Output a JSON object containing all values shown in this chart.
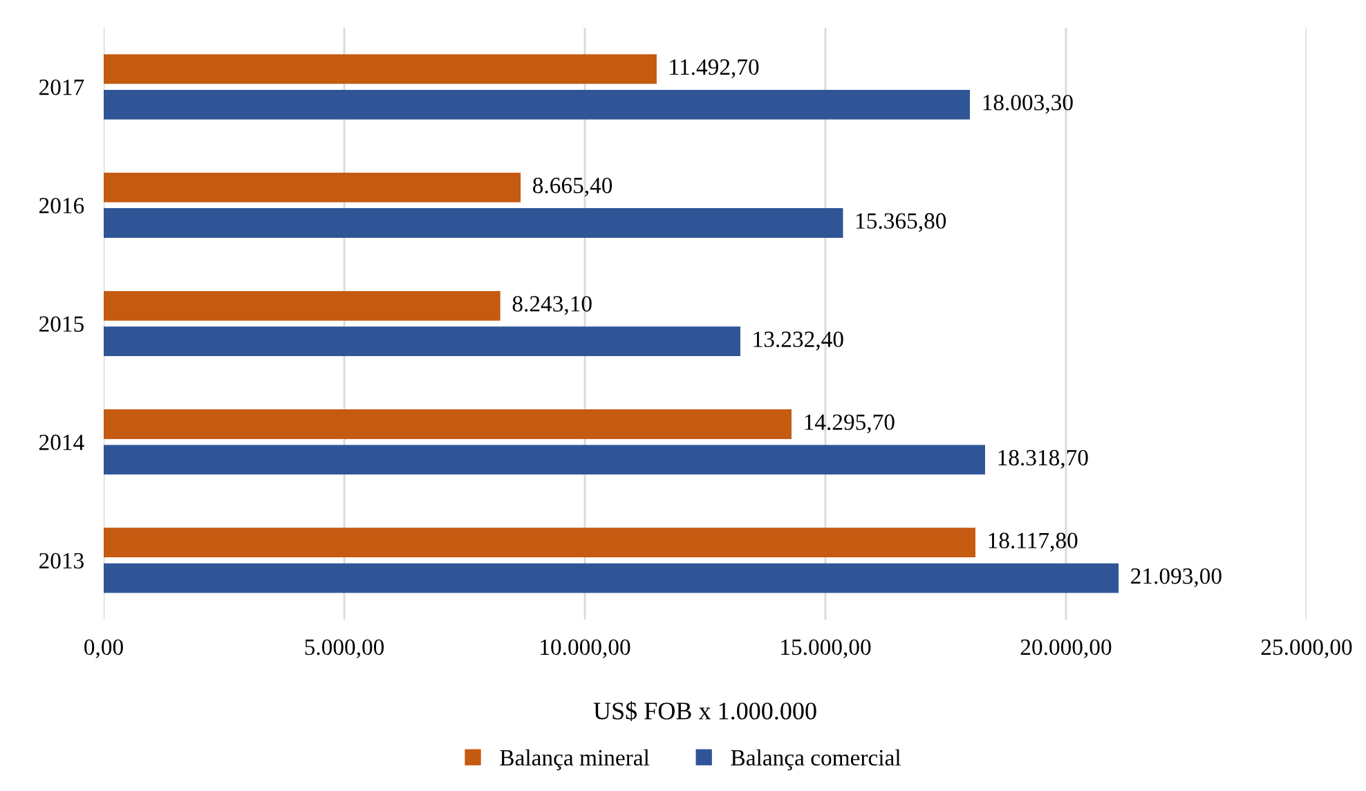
{
  "chart_data": {
    "type": "bar",
    "orientation": "horizontal",
    "xlabel": "US$ FOB x 1.000.000",
    "categories": [
      "2017",
      "2016",
      "2015",
      "2014",
      "2013"
    ],
    "series": [
      {
        "name": "Balança mineral",
        "color": "#c55a11",
        "values": [
          11492.7,
          8665.4,
          8243.1,
          14295.7,
          18117.8
        ],
        "value_labels": [
          "11.492,70",
          "8.665,40",
          "8.243,10",
          "14.295,70",
          "18.117,80"
        ]
      },
      {
        "name": "Balança comercial",
        "color": "#2f5597",
        "values": [
          18003.3,
          15365.8,
          13232.4,
          18318.7,
          21093.0
        ],
        "value_labels": [
          "18.003,30",
          "15.365,80",
          "13.232,40",
          "18.318,70",
          "21.093,00"
        ]
      }
    ],
    "xlim": [
      0,
      25000
    ],
    "xticks": [
      {
        "value": 0,
        "label": "0,00"
      },
      {
        "value": 5000,
        "label": "5.000,00"
      },
      {
        "value": 10000,
        "label": "10.000,00"
      },
      {
        "value": 15000,
        "label": "15.000,00"
      },
      {
        "value": 20000,
        "label": "20.000,00"
      },
      {
        "value": 25000,
        "label": "25.000,00"
      }
    ],
    "grid": "x",
    "legend": "bottom"
  }
}
